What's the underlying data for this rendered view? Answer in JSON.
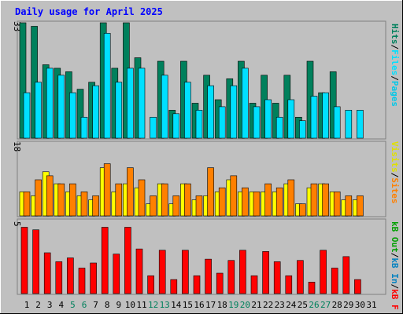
{
  "title": "Daily usage for April 2025",
  "colors": {
    "background": "#c0c0c0",
    "title": "#0000ff",
    "hits": "#00805c",
    "files": "#00e0ff",
    "pages": "#00c8e8",
    "visits": "#ffff00",
    "sites": "#ff8000",
    "kb_f": "#ff0000",
    "kb_in": "#0080c0",
    "kb_out": "#00a000",
    "weekend_label": "#00805c",
    "axis_label": "#000000"
  },
  "legend_top": {
    "hits": "Hits",
    "sep1": "/",
    "files": "Files",
    "sep2": "/",
    "pages": "Pages"
  },
  "legend_mid": {
    "visits": "Visits",
    "sep": "/",
    "sites": "Sites"
  },
  "legend_bot": {
    "kb_f": "kB F",
    "sep1": "/",
    "kb_in": "kB In",
    "sep2": "/",
    "kb_out": "kB Out"
  },
  "chart_data": [
    {
      "type": "bar",
      "name": "hits-files",
      "max_label": "33",
      "ylim": [
        0,
        33
      ],
      "categories": [
        "1",
        "2",
        "3",
        "4",
        "5",
        "6",
        "7",
        "8",
        "9",
        "10",
        "11",
        "12",
        "13",
        "14",
        "15",
        "16",
        "17",
        "18",
        "19",
        "20",
        "21",
        "22",
        "23",
        "24",
        "25",
        "26",
        "27",
        "28",
        "29",
        "30",
        "31"
      ],
      "weekend_days": [
        5,
        6,
        12,
        13,
        19,
        20,
        26,
        27
      ],
      "series": [
        {
          "name": "Hits",
          "color": "#00805c",
          "values": [
            33,
            32,
            21,
            20,
            19,
            14,
            16,
            33,
            20,
            33,
            23,
            0,
            22,
            8,
            22,
            10,
            18,
            11,
            17,
            22,
            10,
            18,
            10,
            18,
            6,
            22,
            13,
            19,
            0,
            0,
            0
          ]
        },
        {
          "name": "Files",
          "color": "#00e0ff",
          "values": [
            13,
            16,
            20,
            18,
            13,
            6,
            15,
            30,
            16,
            20,
            20,
            6,
            18,
            7,
            16,
            8,
            15,
            9,
            15,
            20,
            9,
            11,
            6,
            11,
            5,
            12,
            13,
            9,
            8,
            8,
            0
          ]
        }
      ]
    },
    {
      "type": "bar",
      "name": "visits-sites",
      "max_label": "18",
      "ylim": [
        0,
        18
      ],
      "categories": [
        "1",
        "2",
        "3",
        "4",
        "5",
        "6",
        "7",
        "8",
        "9",
        "10",
        "11",
        "12",
        "13",
        "14",
        "15",
        "16",
        "17",
        "18",
        "19",
        "20",
        "21",
        "22",
        "23",
        "24",
        "25",
        "26",
        "27",
        "28",
        "29",
        "30",
        "31"
      ],
      "series": [
        {
          "name": "Visits",
          "color": "#ffff00",
          "values": [
            6,
            5,
            11,
            8,
            6,
            5,
            4,
            12,
            6,
            8,
            7,
            3,
            8,
            3,
            8,
            4,
            5,
            6,
            9,
            6,
            6,
            6,
            6,
            8,
            3,
            7,
            8,
            6,
            4,
            4,
            0
          ]
        },
        {
          "name": "Sites",
          "color": "#ff8000",
          "values": [
            6,
            9,
            10,
            8,
            8,
            6,
            5,
            13,
            8,
            12,
            9,
            5,
            8,
            5,
            8,
            5,
            12,
            7,
            10,
            7,
            6,
            8,
            7,
            9,
            3,
            8,
            8,
            6,
            5,
            5,
            0
          ]
        }
      ]
    },
    {
      "type": "bar",
      "name": "kb",
      "max_label": "5",
      "ylim": [
        0,
        5.6
      ],
      "categories": [
        "1",
        "2",
        "3",
        "4",
        "5",
        "6",
        "7",
        "8",
        "9",
        "10",
        "11",
        "12",
        "13",
        "14",
        "15",
        "16",
        "17",
        "18",
        "19",
        "20",
        "21",
        "22",
        "23",
        "24",
        "25",
        "26",
        "27",
        "28",
        "29",
        "30",
        "31"
      ],
      "series": [
        {
          "name": "kB F",
          "color": "#ff0000",
          "values": [
            5.2,
            5.0,
            3.2,
            2.5,
            2.8,
            2.0,
            2.4,
            5.2,
            3.1,
            5.2,
            3.5,
            1.4,
            3.4,
            1.1,
            3.4,
            1.4,
            2.7,
            1.6,
            2.6,
            3.4,
            1.4,
            3.3,
            2.5,
            1.4,
            2.6,
            0.9,
            3.4,
            2.0,
            2.9,
            1.1,
            0
          ]
        }
      ]
    }
  ]
}
